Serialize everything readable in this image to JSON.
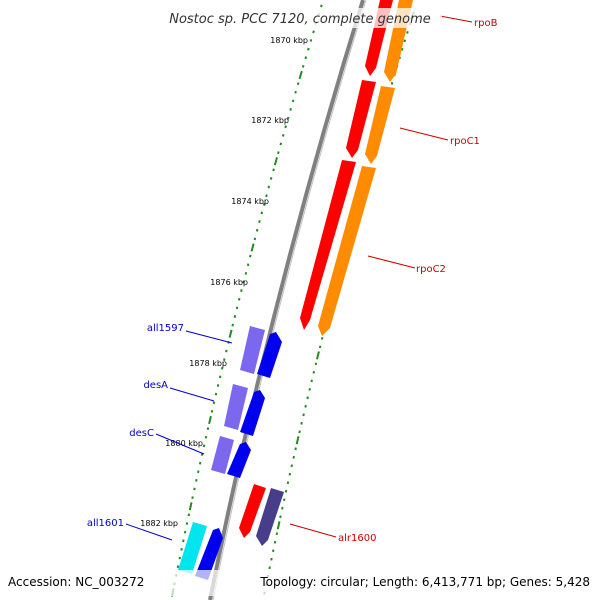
{
  "title": "Nostoc sp. PCC 7120, complete genome",
  "footer": {
    "accession": "Accession: NC_003272",
    "topology": "Topology: circular; Length: 6,413,771 bp; Genes: 5,428"
  },
  "colors": {
    "backbone": "#808080",
    "ticks": "#228b22",
    "red_gene": "#ff0000",
    "orange_gene": "#ff8c00",
    "blue_gene": "#0000ee",
    "lavender_gene": "#6a5acd",
    "cyan_gene": "#00e5ee",
    "dark_slate_gene": "#483d8b",
    "label_red": "#cc0000",
    "label_blue": "#0000cc"
  },
  "scale": {
    "unit": "kbp",
    "labels": [
      "1870 kbp",
      "1872 kbp",
      "1874 kbp",
      "1876 kbp",
      "1878 kbp",
      "1880 kbp",
      "1882 kbp"
    ]
  },
  "genes": [
    {
      "name": "rpoB",
      "strand": "forward",
      "color": "red_gene"
    },
    {
      "name": "rpoC1",
      "strand": "forward",
      "color": "red_gene"
    },
    {
      "name": "rpoC2",
      "strand": "forward",
      "color": "red_gene"
    },
    {
      "name": "all1597",
      "strand": "reverse",
      "color": "blue_gene"
    },
    {
      "name": "desA",
      "strand": "reverse",
      "color": "blue_gene"
    },
    {
      "name": "desC",
      "strand": "reverse",
      "color": "blue_gene"
    },
    {
      "name": "alr1600",
      "strand": "forward",
      "color": "red_gene"
    },
    {
      "name": "all1601",
      "strand": "reverse",
      "color": "blue_gene"
    }
  ]
}
